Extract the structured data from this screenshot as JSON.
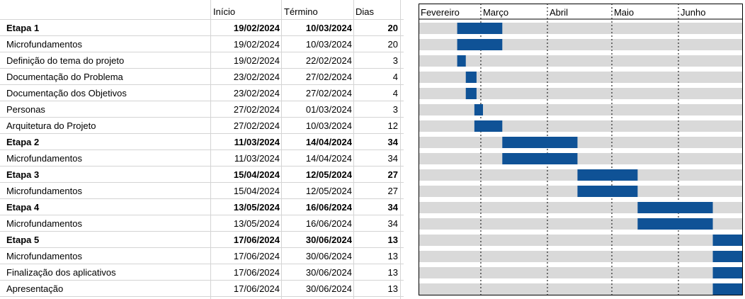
{
  "headers": {
    "start": "Início",
    "end": "Término",
    "days": "Dias"
  },
  "chart_data": {
    "type": "gantt",
    "months": [
      "Fevereiro",
      "Março",
      "Abril",
      "Maio",
      "Junho"
    ],
    "month_starts": [
      "2024-02-01",
      "2024-03-01",
      "2024-04-01",
      "2024-05-01",
      "2024-06-01"
    ],
    "range": [
      "2024-02-01",
      "2024-06-30"
    ],
    "colors": {
      "bar": "#0f5296",
      "track": "#d9d9d9",
      "border": "#000000"
    },
    "tasks": [
      {
        "name": "Etapa 1",
        "start": "19/02/2024",
        "end": "10/03/2024",
        "days": "20",
        "bold": true
      },
      {
        "name": "Microfundamentos",
        "start": "19/02/2024",
        "end": "10/03/2024",
        "days": "20",
        "bold": false
      },
      {
        "name": "Definição do tema do projeto",
        "start": "19/02/2024",
        "end": "22/02/2024",
        "days": "3",
        "bold": false
      },
      {
        "name": "Documentação do Problema",
        "start": "23/02/2024",
        "end": "27/02/2024",
        "days": "4",
        "bold": false
      },
      {
        "name": "Documentação dos Objetivos",
        "start": "23/02/2024",
        "end": "27/02/2024",
        "days": "4",
        "bold": false
      },
      {
        "name": "Personas",
        "start": "27/02/2024",
        "end": "01/03/2024",
        "days": "3",
        "bold": false
      },
      {
        "name": "Arquitetura do Projeto",
        "start": "27/02/2024",
        "end": "10/03/2024",
        "days": "12",
        "bold": false
      },
      {
        "name": "Etapa 2",
        "start": "11/03/2024",
        "end": "14/04/2024",
        "days": "34",
        "bold": true
      },
      {
        "name": "Microfundamentos",
        "start": "11/03/2024",
        "end": "14/04/2024",
        "days": "34",
        "bold": false
      },
      {
        "name": "Etapa 3",
        "start": "15/04/2024",
        "end": "12/05/2024",
        "days": "27",
        "bold": true
      },
      {
        "name": "Microfundamentos",
        "start": "15/04/2024",
        "end": "12/05/2024",
        "days": "27",
        "bold": false
      },
      {
        "name": "Etapa 4",
        "start": "13/05/2024",
        "end": "16/06/2024",
        "days": "34",
        "bold": true
      },
      {
        "name": "Microfundamentos",
        "start": "13/05/2024",
        "end": "16/06/2024",
        "days": "34",
        "bold": false
      },
      {
        "name": "Etapa 5",
        "start": "17/06/2024",
        "end": "30/06/2024",
        "days": "13",
        "bold": true
      },
      {
        "name": "Microfundamentos",
        "start": "17/06/2024",
        "end": "30/06/2024",
        "days": "13",
        "bold": false
      },
      {
        "name": "Finalização dos aplicativos",
        "start": "17/06/2024",
        "end": "30/06/2024",
        "days": "13",
        "bold": false
      },
      {
        "name": "Apresentação",
        "start": "17/06/2024",
        "end": "30/06/2024",
        "days": "13",
        "bold": false
      }
    ]
  }
}
